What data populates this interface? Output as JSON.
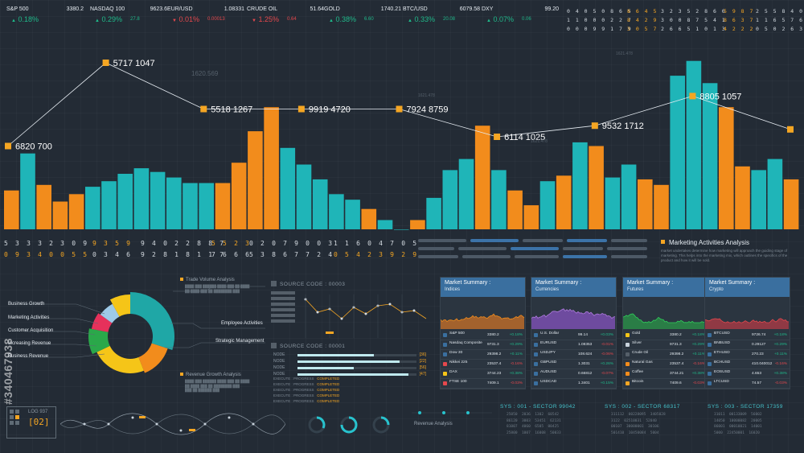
{
  "ticker": [
    {
      "name": "S&P 500",
      "price": "3380.2",
      "change": "0.18%",
      "sub": "",
      "dir": "up"
    },
    {
      "name": "NASDAQ 100",
      "price": "9623.6",
      "change": "0.29%",
      "sub": "27.8",
      "dir": "up"
    },
    {
      "name": "EUR/USD",
      "price": "1.08331",
      "change": "0.01%",
      "sub": "0.00013",
      "dir": "down"
    },
    {
      "name": "CRUDE OIL",
      "price": "51.64",
      "change": "1.25%",
      "sub": "0.64",
      "dir": "down"
    },
    {
      "name": "GOLD",
      "price": "1740.21",
      "change": "0.38%",
      "sub": "6.60",
      "dir": "up"
    },
    {
      "name": "BTC/USD",
      "price": "6079.58",
      "change": "0.33%",
      "sub": "20.08",
      "dir": "up"
    },
    {
      "name": "DXY",
      "price": "99.20",
      "change": "0.07%",
      "sub": "0.06",
      "dir": "up"
    }
  ],
  "ticker_digits": {
    "block1": "0 4 0 5 0 8 6 5\n1 1 0 0 0 2 2 7\n0 0 0 9 9 1 7 9",
    "block2": "8 6 4 5\n8 4 2 9\n3 0 5 7",
    "block3": "3 2 3 5 2 8 6 0\n3 0 0 8 7 5 4 1\n2 6 6 5 1 0 1 3",
    "block4": "5 9 8 7\n8 6 3 7\n4 2 2 2",
    "block5": "2 5 5 8 4 0 9 0\n1 1 6 5 7 6 6 5\n0 5 0 2 6 3 0 5"
  },
  "chart_data": {
    "type": "bar",
    "series": [
      {
        "name": "",
        "color": "#1fb5b8"
      },
      {
        "name": "",
        "color": "#f28c1c"
      }
    ],
    "bars": [
      {
        "value": 21,
        "series": 1
      },
      {
        "value": 41,
        "series": 0
      },
      {
        "value": 24,
        "series": 1
      },
      {
        "value": 15,
        "series": 1
      },
      {
        "value": 19,
        "series": 1
      },
      {
        "value": 23,
        "series": 0
      },
      {
        "value": 26,
        "series": 0
      },
      {
        "value": 30,
        "series": 0
      },
      {
        "value": 33,
        "series": 0
      },
      {
        "value": 31,
        "series": 0
      },
      {
        "value": 28,
        "series": 0
      },
      {
        "value": 25,
        "series": 0
      },
      {
        "value": 25,
        "series": 0
      },
      {
        "value": 25,
        "series": 1
      },
      {
        "value": 36,
        "series": 1
      },
      {
        "value": 53,
        "series": 1
      },
      {
        "value": 66,
        "series": 1
      },
      {
        "value": 44,
        "series": 0
      },
      {
        "value": 35,
        "series": 0
      },
      {
        "value": 27,
        "series": 0
      },
      {
        "value": 19,
        "series": 0
      },
      {
        "value": 16,
        "series": 0
      },
      {
        "value": 11,
        "series": 1
      },
      {
        "value": 5,
        "series": 0
      },
      {
        "value": 0,
        "series": 0
      },
      {
        "value": 5,
        "series": 1
      },
      {
        "value": 17,
        "series": 0
      },
      {
        "value": 32,
        "series": 0
      },
      {
        "value": 38,
        "series": 0
      },
      {
        "value": 56,
        "series": 1
      },
      {
        "value": 32,
        "series": 0
      },
      {
        "value": 21,
        "series": 1
      },
      {
        "value": 13,
        "series": 1
      },
      {
        "value": 26,
        "series": 0
      },
      {
        "value": 29,
        "series": 1
      },
      {
        "value": 47,
        "series": 0
      },
      {
        "value": 45,
        "series": 1
      },
      {
        "value": 28,
        "series": 0
      },
      {
        "value": 35,
        "series": 0
      },
      {
        "value": 27,
        "series": 1
      },
      {
        "value": 24,
        "series": 1
      },
      {
        "value": 83,
        "series": 0
      },
      {
        "value": 91,
        "series": 0
      },
      {
        "value": 79,
        "series": 0
      },
      {
        "value": 66,
        "series": 1
      },
      {
        "value": 34,
        "series": 1
      },
      {
        "value": 32,
        "series": 0
      },
      {
        "value": 38,
        "series": 0
      },
      {
        "value": 27,
        "series": 1
      }
    ],
    "line_points": [
      {
        "label": "6820 700",
        "value": 45
      },
      {
        "label": "5717 1047",
        "value": 90
      },
      {
        "label": "5518 1267",
        "value": 65
      },
      {
        "label": "9919 4720",
        "value": 65
      },
      {
        "label": "7924 8759",
        "value": 65
      },
      {
        "label": "6114 1025",
        "value": 50
      },
      {
        "label": "9532 1712",
        "value": 56
      },
      {
        "label": "8805 1057",
        "value": 72
      },
      {
        "label": "",
        "value": 54
      }
    ],
    "annotations": [
      "1620.569",
      "1621.478",
      "1621.478",
      "1621.478"
    ],
    "ylim": [
      0,
      100
    ]
  },
  "digit_strips": [
    {
      "top": "5 3 3 3 2 3 0 9",
      "bottom": "0 9 3 4 0 0 5 5"
    },
    {
      "top": "9 3 5 9",
      "bottom": "0 3 4 6"
    },
    {
      "top": "9 4 0 2 2 8 8 7",
      "bottom": "9 2 8 1 8 1 1 7"
    },
    {
      "top": "5 5 2 3",
      "bottom": "7 6 6 6"
    },
    {
      "top": "0 2 0 7 9 0 0 3",
      "bottom": "5 3 8 6 7 7 2 4"
    },
    {
      "top": "1 1 6 0 4 7 0 5",
      "bottom": "0 5 4 2 3 9 2 9"
    }
  ],
  "marketing": {
    "title": "Marketing Activities Analysis",
    "desc": "market undertakes determine how marketing will approach the guiding stage of marketing. This helps into the marketing mix, which outlines the specifics of the product and how it will be sold."
  },
  "side_id": "#340467938",
  "donut": {
    "segments": [
      {
        "value": 30,
        "color": "#1fa7a6"
      },
      {
        "value": 14,
        "color": "#f28c1c"
      },
      {
        "value": 24,
        "color": "#f5c518"
      },
      {
        "value": 10,
        "color": "#2aa84a"
      },
      {
        "value": 7,
        "color": "#e6315b"
      },
      {
        "value": 7,
        "color": "#9ecae8"
      },
      {
        "value": 8,
        "color": "#f5c518"
      }
    ],
    "labels_left": [
      "Business Growth",
      "Marketing Activities",
      "Customer Acquisition",
      "Increasing Revenue",
      "Business Revenue"
    ],
    "labels_right": [
      "Employee Activities",
      "Strategic Management"
    ],
    "titles": [
      "Trade Volume Analysis",
      "Revenue Growth Analysis"
    ]
  },
  "source_panels": [
    {
      "label": "SOURCE CODE : 00003"
    },
    {
      "label": "SOURCE CODE : 00001"
    }
  ],
  "nodes": [
    {
      "label": "NODE",
      "fill": 0.64,
      "num": "[36]"
    },
    {
      "label": "NODE",
      "fill": 0.86,
      "num": "[22]"
    },
    {
      "label": "NODE",
      "fill": 0.47,
      "num": "[56]"
    },
    {
      "label": "NODE",
      "fill": 0.93,
      "num": "[47]"
    }
  ],
  "statuses": [
    {
      "text": "EXECUTE : PROGRESS",
      "ok": "COMPLETED"
    },
    {
      "text": "EXECUTE : PROGRESS",
      "ok": "COMPLETED"
    },
    {
      "text": "EXECUTE : PROGRESS",
      "ok": "COMPLETED"
    },
    {
      "text": "EXECUTE : PROGRESS",
      "ok": "COMPLETED"
    },
    {
      "text": "EXECUTE : PROGRESS",
      "ok": "COMPLETED"
    }
  ],
  "cards": [
    {
      "title": "Market Summary :",
      "sub": "Indices",
      "chart_color": "#f28c1c",
      "chart_fill": "#b86a2a",
      "rows": [
        {
          "name": "S&P 500",
          "val": "3380.2",
          "chg": "+0.18%",
          "dot": "#3a6f9f",
          "dir": "up"
        },
        {
          "name": "Nasdaq Composite",
          "val": "9731.3",
          "chg": "+0.29%",
          "dot": "#3a6f9f",
          "dir": "up"
        },
        {
          "name": "Dow 30",
          "val": "29398.2",
          "chg": "+0.11%",
          "dot": "#3a6f9f",
          "dir": "up"
        },
        {
          "name": "Nikkei 225",
          "val": "23537.4",
          "chg": "-0.16%",
          "dot": "#e5484d",
          "dir": "down"
        },
        {
          "name": "DAX",
          "val": "3744.23",
          "chg": "+0.38%",
          "dot": "#f5c518",
          "dir": "up"
        },
        {
          "name": "FTSE 100",
          "val": "7409.1",
          "chg": "-0.03%",
          "dot": "#e5484d",
          "dir": "down"
        }
      ]
    },
    {
      "title": "Market Summary :",
      "sub": "Currencies",
      "chart_color": "#b07be0",
      "chart_fill": "#7a4fb0",
      "rows": [
        {
          "name": "U.S. Dollar",
          "val": "99.14",
          "chg": "+0.03%",
          "dot": "#3a6f9f",
          "dir": "up"
        },
        {
          "name": "EURUSD",
          "val": "1.08353",
          "chg": "-0.01%",
          "dot": "#3a6f9f",
          "dir": "down"
        },
        {
          "name": "USDJPY",
          "val": "108.624",
          "chg": "-0.06%",
          "dot": "#3a6f9f",
          "dir": "down"
        },
        {
          "name": "GBPUSD",
          "val": "1.3031",
          "chg": "+0.26%",
          "dot": "#3a6f9f",
          "dir": "up"
        },
        {
          "name": "AUDUSD",
          "val": "0.66812",
          "chg": "-0.07%",
          "dot": "#3a6f9f",
          "dir": "down"
        },
        {
          "name": "USDCAD",
          "val": "1.3401",
          "chg": "+0.15%",
          "dot": "#3a6f9f",
          "dir": "up"
        }
      ]
    },
    {
      "title": "Market Summary :",
      "sub": "Futures",
      "chart_color": "#2fcf5a",
      "chart_fill": "#2a8a48",
      "rows": [
        {
          "name": "Gold",
          "val": "3380.2",
          "chg": "+0.18%",
          "dot": "#f5c518",
          "dir": "up"
        },
        {
          "name": "Silver",
          "val": "9731.3",
          "chg": "+0.29%",
          "dot": "#c9d3dc",
          "dir": "up"
        },
        {
          "name": "Crude Oil",
          "val": "29398.2",
          "chg": "+0.11%",
          "dot": "#555f69",
          "dir": "up"
        },
        {
          "name": "Natural Gas",
          "val": "23537.4",
          "chg": "-0.16%",
          "dot": "#f28c1c",
          "dir": "down"
        },
        {
          "name": "Coffee",
          "val": "3744.21",
          "chg": "+0.38%",
          "dot": "#f28c1c",
          "dir": "up"
        },
        {
          "name": "Bitcoin",
          "val": "7409.6",
          "chg": "-0.03%",
          "dot": "#f5a623",
          "dir": "down"
        }
      ]
    },
    {
      "title": "Market Summary :",
      "sub": "Crypto",
      "chart_color": "#e5484d",
      "chart_fill": "#a23a45",
      "rows": [
        {
          "name": "BTCUSD",
          "val": "9726.74",
          "chg": "+0.18%",
          "dot": "#3a6f9f",
          "dir": "up"
        },
        {
          "name": "BNBUSD",
          "val": "0.29127",
          "chg": "+0.29%",
          "dot": "#3a6f9f",
          "dir": "up"
        },
        {
          "name": "ETHUSD",
          "val": "270.23",
          "chg": "+0.11%",
          "dot": "#3a6f9f",
          "dir": "up"
        },
        {
          "name": "BCHUSD",
          "val": "410.040012",
          "chg": "-0.16%",
          "dot": "#3a6f9f",
          "dir": "down"
        },
        {
          "name": "EOSUSD",
          "val": "4.653",
          "chg": "+0.38%",
          "dot": "#3a6f9f",
          "dir": "up"
        },
        {
          "name": "LTCUSD",
          "val": "74.57",
          "chg": "-0.03%",
          "dot": "#3a6f9f",
          "dir": "down"
        }
      ]
    }
  ],
  "log": {
    "title": "LOG 937",
    "num": "[02]"
  },
  "revenue_title": "Revenue Analysis",
  "sys_panels": [
    {
      "head": "SYS : 001 - SECTOR 99042",
      "digits": "25050  2036  1302  60542\n86120  3003  53451  62131\n81007  4060  6505  00425\n25800  1007  16008  50033"
    },
    {
      "head": "SYS : 002 - SECTOR 68317",
      "digits": "311112  00228095  3405028\n3122  02510031  52040\n00107  30000001  30106\n501410  10450084  5004"
    },
    {
      "head": "SYS : 003 - SECTOR 17359",
      "digits": "31011  00133009  56002\n14050  10000082  20005\n86001  00010021  14001\n5000  22450001  16020"
    }
  ]
}
